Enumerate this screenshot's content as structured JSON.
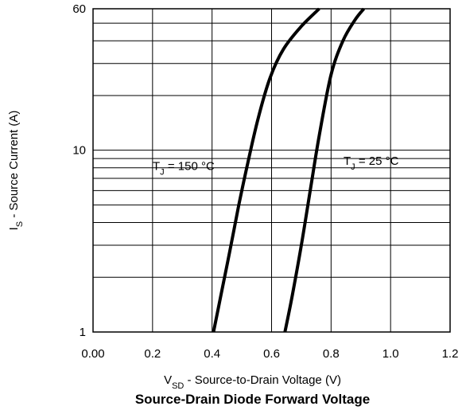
{
  "chart_data": {
    "type": "line",
    "title": "Source-Drain Diode Forward Voltage",
    "xlabel": {
      "main": "V",
      "sub": "SD",
      "rest": " - Source-to-Drain Voltage (V)"
    },
    "ylabel": {
      "main": "I",
      "sub": "S",
      "rest": " - Source Current (A)"
    },
    "xlim": [
      0.0,
      1.2
    ],
    "ylim": [
      1,
      60
    ],
    "yscale": "log",
    "grid": true,
    "x_ticks": [
      0.0,
      0.2,
      0.4,
      0.6,
      0.8,
      1.0,
      1.2
    ],
    "x_tick_labels": [
      "0.00",
      "0.2",
      "0.4",
      "0.6",
      "0.8",
      "1.0",
      "1.2"
    ],
    "y_ticks": [
      1,
      10,
      60
    ],
    "y_tick_labels": [
      "1",
      "10",
      "60"
    ],
    "series": [
      {
        "name": "TJ = 150 °C",
        "label": {
          "main": "T",
          "sub": "J",
          "rest": " = 150 °C"
        },
        "x": [
          0.405,
          0.43,
          0.46,
          0.49,
          0.52,
          0.555,
          0.595,
          0.64,
          0.7,
          0.76
        ],
        "y": [
          1,
          1.6,
          2.8,
          5,
          8.5,
          15,
          25,
          36,
          48,
          60
        ]
      },
      {
        "name": "TJ = 25 °C",
        "label": {
          "main": "T",
          "sub": "J",
          "rest": " = 25 °C"
        },
        "x": [
          0.645,
          0.67,
          0.7,
          0.73,
          0.76,
          0.8,
          0.84,
          0.88,
          0.91
        ],
        "y": [
          1,
          1.6,
          3,
          6,
          12,
          26,
          40,
          52,
          60
        ]
      }
    ]
  }
}
